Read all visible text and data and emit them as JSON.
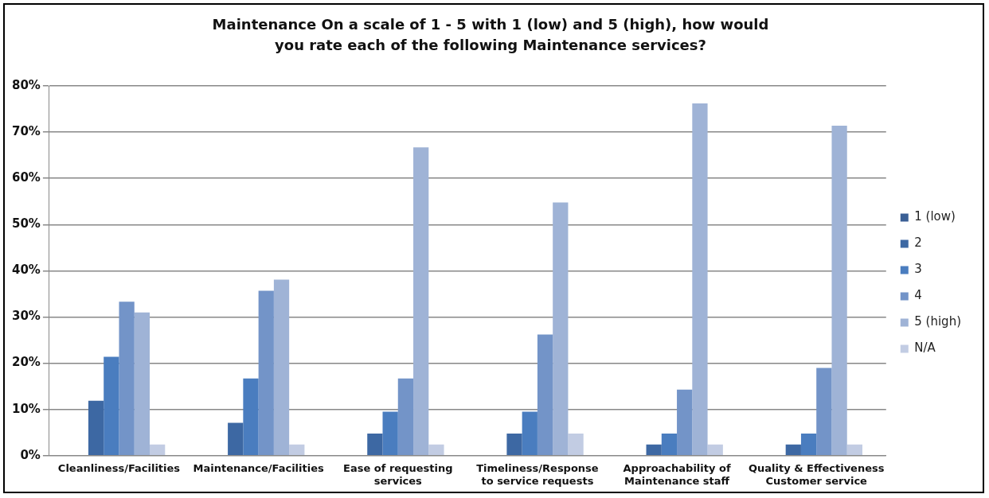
{
  "chart_data": {
    "type": "bar",
    "title": "Maintenance On a scale of 1 - 5 with 1 (low) and 5 (high), how would you rate each of the following Maintenance services?",
    "categories": [
      "Cleanliness/Facilities",
      "Maintenance/Facilities",
      "Ease of requesting services",
      "Timeliness/Response to service requests",
      "Approachability of Maintenance staff",
      "Quality & Effectiveness Customer service"
    ],
    "series": [
      {
        "name": "1 (low)",
        "color": "#3a5f95",
        "values": [
          0,
          0,
          0,
          0,
          0,
          0
        ]
      },
      {
        "name": "2",
        "color": "#3d68a3",
        "values": [
          11.9,
          7.1,
          4.8,
          4.8,
          2.4,
          2.4
        ]
      },
      {
        "name": "3",
        "color": "#4a7dbf",
        "values": [
          21.4,
          16.7,
          9.5,
          9.5,
          4.8,
          4.8
        ]
      },
      {
        "name": "4",
        "color": "#7394c8",
        "values": [
          33.3,
          35.7,
          16.7,
          26.2,
          14.3,
          19.0
        ]
      },
      {
        "name": "5 (high)",
        "color": "#9fb3d6",
        "values": [
          31.0,
          38.1,
          66.7,
          54.8,
          76.2,
          71.4
        ]
      },
      {
        "name": "N/A",
        "color": "#c2cce3",
        "values": [
          2.4,
          2.4,
          2.4,
          4.8,
          2.4,
          2.4
        ]
      }
    ],
    "ylim": [
      0,
      80
    ],
    "yticks": [
      {
        "value": 0,
        "label": "0%"
      },
      {
        "value": 10,
        "label": "10%"
      },
      {
        "value": 20,
        "label": "20%"
      },
      {
        "value": 30,
        "label": "30%"
      },
      {
        "value": 40,
        "label": "40%"
      },
      {
        "value": 50,
        "label": "50%"
      },
      {
        "value": 60,
        "label": "60%"
      },
      {
        "value": 70,
        "label": "70%"
      },
      {
        "value": 80,
        "label": "80%"
      }
    ],
    "grid": "y",
    "legend": "right"
  }
}
